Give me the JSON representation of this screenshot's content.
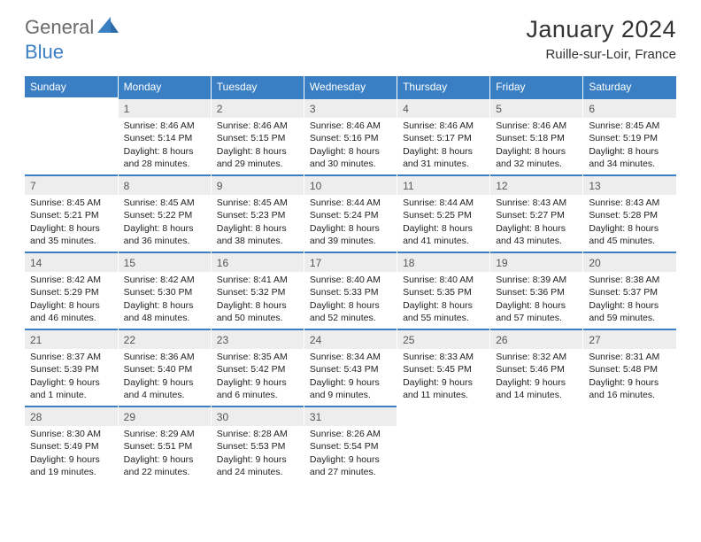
{
  "logo": {
    "text1": "General",
    "text2": "Blue"
  },
  "title": "January 2024",
  "location": "Ruille-sur-Loir, France",
  "colors": {
    "header_blue": "#3a7fc4",
    "day_header_bg": "#ededed",
    "logo_gray": "#6a6a6a",
    "logo_blue": "#3a7fc4",
    "text": "#222222",
    "background": "#ffffff"
  },
  "typography": {
    "title_fontsize": 27,
    "location_fontsize": 15,
    "weekday_fontsize": 12,
    "daynum_fontsize": 12,
    "body_fontsize": 10.5
  },
  "weekdays": [
    "Sunday",
    "Monday",
    "Tuesday",
    "Wednesday",
    "Thursday",
    "Friday",
    "Saturday"
  ],
  "grid": [
    [
      null,
      {
        "n": "1",
        "sr": "8:46 AM",
        "ss": "5:14 PM",
        "dl": "8 hours and 28 minutes."
      },
      {
        "n": "2",
        "sr": "8:46 AM",
        "ss": "5:15 PM",
        "dl": "8 hours and 29 minutes."
      },
      {
        "n": "3",
        "sr": "8:46 AM",
        "ss": "5:16 PM",
        "dl": "8 hours and 30 minutes."
      },
      {
        "n": "4",
        "sr": "8:46 AM",
        "ss": "5:17 PM",
        "dl": "8 hours and 31 minutes."
      },
      {
        "n": "5",
        "sr": "8:46 AM",
        "ss": "5:18 PM",
        "dl": "8 hours and 32 minutes."
      },
      {
        "n": "6",
        "sr": "8:45 AM",
        "ss": "5:19 PM",
        "dl": "8 hours and 34 minutes."
      }
    ],
    [
      {
        "n": "7",
        "sr": "8:45 AM",
        "ss": "5:21 PM",
        "dl": "8 hours and 35 minutes."
      },
      {
        "n": "8",
        "sr": "8:45 AM",
        "ss": "5:22 PM",
        "dl": "8 hours and 36 minutes."
      },
      {
        "n": "9",
        "sr": "8:45 AM",
        "ss": "5:23 PM",
        "dl": "8 hours and 38 minutes."
      },
      {
        "n": "10",
        "sr": "8:44 AM",
        "ss": "5:24 PM",
        "dl": "8 hours and 39 minutes."
      },
      {
        "n": "11",
        "sr": "8:44 AM",
        "ss": "5:25 PM",
        "dl": "8 hours and 41 minutes."
      },
      {
        "n": "12",
        "sr": "8:43 AM",
        "ss": "5:27 PM",
        "dl": "8 hours and 43 minutes."
      },
      {
        "n": "13",
        "sr": "8:43 AM",
        "ss": "5:28 PM",
        "dl": "8 hours and 45 minutes."
      }
    ],
    [
      {
        "n": "14",
        "sr": "8:42 AM",
        "ss": "5:29 PM",
        "dl": "8 hours and 46 minutes."
      },
      {
        "n": "15",
        "sr": "8:42 AM",
        "ss": "5:30 PM",
        "dl": "8 hours and 48 minutes."
      },
      {
        "n": "16",
        "sr": "8:41 AM",
        "ss": "5:32 PM",
        "dl": "8 hours and 50 minutes."
      },
      {
        "n": "17",
        "sr": "8:40 AM",
        "ss": "5:33 PM",
        "dl": "8 hours and 52 minutes."
      },
      {
        "n": "18",
        "sr": "8:40 AM",
        "ss": "5:35 PM",
        "dl": "8 hours and 55 minutes."
      },
      {
        "n": "19",
        "sr": "8:39 AM",
        "ss": "5:36 PM",
        "dl": "8 hours and 57 minutes."
      },
      {
        "n": "20",
        "sr": "8:38 AM",
        "ss": "5:37 PM",
        "dl": "8 hours and 59 minutes."
      }
    ],
    [
      {
        "n": "21",
        "sr": "8:37 AM",
        "ss": "5:39 PM",
        "dl": "9 hours and 1 minute."
      },
      {
        "n": "22",
        "sr": "8:36 AM",
        "ss": "5:40 PM",
        "dl": "9 hours and 4 minutes."
      },
      {
        "n": "23",
        "sr": "8:35 AM",
        "ss": "5:42 PM",
        "dl": "9 hours and 6 minutes."
      },
      {
        "n": "24",
        "sr": "8:34 AM",
        "ss": "5:43 PM",
        "dl": "9 hours and 9 minutes."
      },
      {
        "n": "25",
        "sr": "8:33 AM",
        "ss": "5:45 PM",
        "dl": "9 hours and 11 minutes."
      },
      {
        "n": "26",
        "sr": "8:32 AM",
        "ss": "5:46 PM",
        "dl": "9 hours and 14 minutes."
      },
      {
        "n": "27",
        "sr": "8:31 AM",
        "ss": "5:48 PM",
        "dl": "9 hours and 16 minutes."
      }
    ],
    [
      {
        "n": "28",
        "sr": "8:30 AM",
        "ss": "5:49 PM",
        "dl": "9 hours and 19 minutes."
      },
      {
        "n": "29",
        "sr": "8:29 AM",
        "ss": "5:51 PM",
        "dl": "9 hours and 22 minutes."
      },
      {
        "n": "30",
        "sr": "8:28 AM",
        "ss": "5:53 PM",
        "dl": "9 hours and 24 minutes."
      },
      {
        "n": "31",
        "sr": "8:26 AM",
        "ss": "5:54 PM",
        "dl": "9 hours and 27 minutes."
      },
      null,
      null,
      null
    ]
  ],
  "labels": {
    "sunrise": "Sunrise:",
    "sunset": "Sunset:",
    "daylight": "Daylight:"
  }
}
